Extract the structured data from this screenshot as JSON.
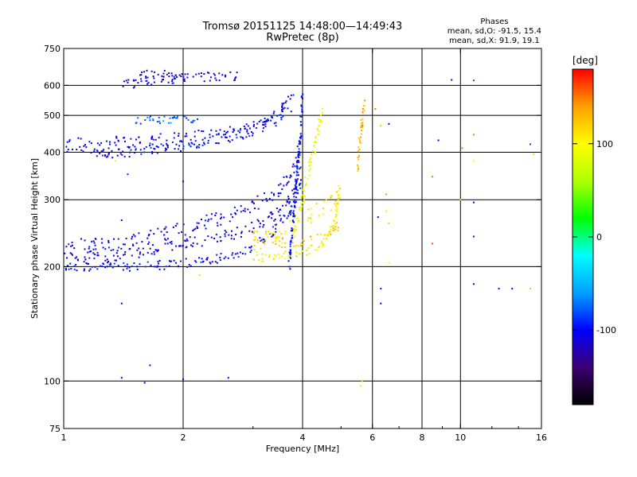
{
  "title": "Tromsø 20151125 14:48:00—14:49:43",
  "subtitle": "RwPretec (8p)",
  "stats": {
    "label": "Phases",
    "line_o": "mean, sd,O: -91.5, 15.4",
    "line_x": "mean, sd,X:  91.9, 19.1"
  },
  "colorbar": {
    "title": "[deg]",
    "ticks": [
      "100",
      "0",
      "-100"
    ],
    "tick_values": [
      100,
      0,
      -100
    ],
    "range": [
      -180,
      180
    ],
    "colors": [
      "#000000",
      "#3c0070",
      "#0000ff",
      "#00a0ff",
      "#00ffff",
      "#00ff00",
      "#b0ff00",
      "#ffff00",
      "#ffa000",
      "#ff0000"
    ]
  },
  "chart_data": {
    "type": "scatter",
    "title": "Tromsø 20151125 14:48:00—14:49:43",
    "subtitle": "RwPretec (8p)",
    "xlabel": "Frequency [MHz]",
    "ylabel": "Stationary phase Virtual Height [km]",
    "xscale": "log",
    "yscale": "log",
    "xlim": [
      1,
      16
    ],
    "ylim": [
      75,
      750
    ],
    "xticks": [
      1,
      2,
      4,
      6,
      8,
      10,
      16
    ],
    "yticks": [
      75,
      100,
      200,
      300,
      400,
      500,
      600,
      750
    ],
    "grid_x": [
      2,
      4,
      6,
      8,
      10
    ],
    "grid_y": [
      100,
      200,
      300,
      400,
      500,
      600
    ],
    "color_encoding": "phase in degrees",
    "traces": [
      {
        "name": "",
        "phase": -100,
        "spread": 0.012,
        "x": [
          1.0,
          1.1,
          1.2,
          1.4,
          1.6,
          1.8,
          2.0,
          2.3,
          2.6,
          2.9,
          3.2,
          3.5,
          3.8,
          3.95
        ],
        "y": [
          198,
          199,
          200,
          200,
          201,
          202,
          204,
          207,
          213,
          222,
          237,
          258,
          290,
          330
        ]
      },
      {
        "name": "",
        "phase": -105,
        "spread": 0.02,
        "x": [
          1.0,
          1.2,
          1.4,
          1.6,
          1.8,
          2.0,
          2.3,
          2.6,
          2.9,
          3.2,
          3.5,
          3.8,
          3.95
        ],
        "y": [
          225,
          228,
          232,
          238,
          245,
          252,
          262,
          272,
          285,
          300,
          320,
          360,
          420
        ]
      },
      {
        "name": "",
        "phase": -110,
        "spread": 0.015,
        "x": [
          1.0,
          1.2,
          1.4,
          1.6,
          1.8,
          2.0,
          2.3,
          2.6,
          2.9,
          3.2,
          3.5,
          3.8,
          3.95
        ],
        "y": [
          210,
          212,
          215,
          220,
          225,
          230,
          236,
          242,
          250,
          262,
          280,
          310,
          360
        ]
      },
      {
        "name": "",
        "phase": -105,
        "spread": 0.02,
        "x": [
          1.0,
          1.2,
          1.4,
          1.6,
          1.8,
          2.0,
          2.3,
          2.6,
          2.9,
          3.2,
          3.5,
          3.8
        ],
        "y": [
          415,
          418,
          422,
          425,
          428,
          432,
          438,
          445,
          455,
          470,
          490,
          520
        ]
      },
      {
        "name": "",
        "phase": -100,
        "spread": 0.015,
        "x": [
          1.1,
          1.3,
          1.5,
          1.7,
          2.0,
          2.3,
          2.6,
          2.9,
          3.2,
          3.5,
          3.8
        ],
        "y": [
          395,
          398,
          402,
          408,
          415,
          425,
          440,
          460,
          480,
          510,
          560
        ]
      },
      {
        "name": "",
        "phase": -75,
        "spread": 0.01,
        "x": [
          1.5,
          1.6,
          1.7,
          1.8,
          1.9,
          2.0,
          2.1,
          2.2
        ],
        "y": [
          485,
          487,
          488,
          487,
          486,
          488,
          490,
          492
        ]
      },
      {
        "name": "",
        "phase": -108,
        "spread": 0.012,
        "x": [
          1.4,
          1.6,
          1.8,
          2.0,
          2.2,
          2.4,
          2.6,
          2.75
        ],
        "y": [
          600,
          612,
          620,
          628,
          630,
          632,
          634,
          636
        ]
      },
      {
        "name": "",
        "phase": -115,
        "spread": 0.01,
        "x": [
          1.55,
          1.7,
          1.85,
          2.0
        ],
        "y": [
          640,
          645,
          640,
          632
        ]
      },
      {
        "name": "",
        "phase": 100,
        "spread": 0.012,
        "x": [
          3.0,
          3.3,
          3.6,
          3.9,
          4.2,
          4.5,
          4.7,
          4.85,
          4.95
        ],
        "y": [
          208,
          212,
          215,
          218,
          222,
          230,
          245,
          270,
          320
        ]
      },
      {
        "name": "",
        "phase": 110,
        "spread": 0.025,
        "x": [
          3.0,
          3.2,
          3.4,
          3.6,
          3.8,
          4.0,
          4.2,
          4.4,
          4.6,
          4.8,
          5.0
        ],
        "y": [
          225,
          235,
          245,
          255,
          262,
          270,
          275,
          280,
          290,
          300,
          320
        ]
      },
      {
        "name": "",
        "phase": 95,
        "spread": 0.02,
        "x": [
          3.8,
          3.9,
          4.0,
          4.1,
          4.2,
          4.3,
          4.4,
          4.5
        ],
        "y": [
          240,
          270,
          300,
          340,
          380,
          420,
          470,
          520
        ]
      },
      {
        "name": "",
        "phase": 120,
        "spread": 0.015,
        "x": [
          3.0,
          3.2,
          3.5,
          3.8,
          4.1,
          4.4,
          4.7,
          5.0
        ],
        "y": [
          245,
          238,
          232,
          230,
          232,
          236,
          244,
          258
        ]
      },
      {
        "name": "",
        "phase": -100,
        "spread": 0.015,
        "x": [
          3.7,
          3.75,
          3.8,
          3.85,
          3.9,
          3.95,
          4.0
        ],
        "y": [
          200,
          240,
          280,
          320,
          380,
          450,
          560
        ]
      },
      {
        "name": "",
        "phase": 130,
        "spread": 0.02,
        "x": [
          5.5,
          5.55,
          5.6,
          5.65,
          5.7,
          5.75
        ],
        "y": [
          360,
          400,
          440,
          480,
          510,
          540
        ]
      }
    ],
    "isolated_points": [
      {
        "x": 1.4,
        "y": 102,
        "phase": -100
      },
      {
        "x": 1.6,
        "y": 99,
        "phase": -100
      },
      {
        "x": 2.0,
        "y": 101,
        "phase": -100
      },
      {
        "x": 2.6,
        "y": 102,
        "phase": -100
      },
      {
        "x": 1.65,
        "y": 110,
        "phase": -110
      },
      {
        "x": 1.4,
        "y": 160,
        "phase": -110
      },
      {
        "x": 2.2,
        "y": 190,
        "phase": 60
      },
      {
        "x": 1.4,
        "y": 265,
        "phase": -110
      },
      {
        "x": 2.0,
        "y": 335,
        "phase": -120
      },
      {
        "x": 1.45,
        "y": 350,
        "phase": -90
      },
      {
        "x": 1.35,
        "y": 380,
        "phase": 90
      },
      {
        "x": 5.6,
        "y": 97,
        "phase": 110
      },
      {
        "x": 5.65,
        "y": 100,
        "phase": 130
      },
      {
        "x": 6.3,
        "y": 160,
        "phase": -110
      },
      {
        "x": 6.3,
        "y": 175,
        "phase": -110
      },
      {
        "x": 6.6,
        "y": 205,
        "phase": 100
      },
      {
        "x": 6.6,
        "y": 260,
        "phase": 120
      },
      {
        "x": 6.5,
        "y": 280,
        "phase": 110
      },
      {
        "x": 6.2,
        "y": 270,
        "phase": -110
      },
      {
        "x": 6.5,
        "y": 310,
        "phase": 140
      },
      {
        "x": 6.3,
        "y": 470,
        "phase": 120
      },
      {
        "x": 6.6,
        "y": 475,
        "phase": -110
      },
      {
        "x": 6.1,
        "y": 520,
        "phase": 150
      },
      {
        "x": 8.5,
        "y": 230,
        "phase": 160
      },
      {
        "x": 8.5,
        "y": 345,
        "phase": 150
      },
      {
        "x": 8.8,
        "y": 430,
        "phase": -110
      },
      {
        "x": 9.5,
        "y": 620,
        "phase": -110
      },
      {
        "x": 10.0,
        "y": 300,
        "phase": 120
      },
      {
        "x": 10.1,
        "y": 410,
        "phase": 150
      },
      {
        "x": 10.8,
        "y": 180,
        "phase": -110
      },
      {
        "x": 10.8,
        "y": 240,
        "phase": -110
      },
      {
        "x": 10.8,
        "y": 295,
        "phase": -110
      },
      {
        "x": 10.8,
        "y": 380,
        "phase": 100
      },
      {
        "x": 10.8,
        "y": 445,
        "phase": 150
      },
      {
        "x": 10.8,
        "y": 618,
        "phase": -80
      },
      {
        "x": 12.5,
        "y": 175,
        "phase": -110
      },
      {
        "x": 13.5,
        "y": 175,
        "phase": -110
      },
      {
        "x": 15.0,
        "y": 175,
        "phase": 120
      },
      {
        "x": 15.0,
        "y": 420,
        "phase": -80
      },
      {
        "x": 15.3,
        "y": 395,
        "phase": 110
      }
    ]
  }
}
